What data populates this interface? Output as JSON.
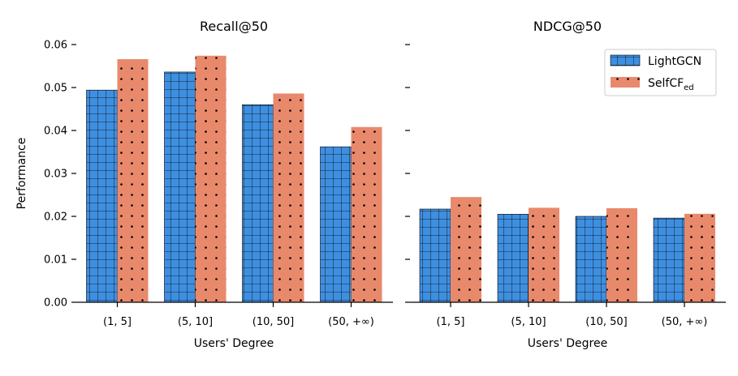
{
  "chart_data": [
    {
      "type": "bar",
      "title": "Recall@50",
      "xlabel": "Users' Degree",
      "ylabel": "Performance",
      "ylim": [
        0,
        0.06
      ],
      "yticks": [
        "0.00",
        "0.01",
        "0.02",
        "0.03",
        "0.04",
        "0.05",
        "0.06"
      ],
      "show_ytick_labels": true,
      "categories": [
        "(1, 5]",
        "(5, 10]",
        "(10, 50]",
        "(50, +∞)"
      ],
      "series": [
        {
          "name": "LightGCN",
          "values": [
            0.0494,
            0.0536,
            0.046,
            0.0362
          ]
        },
        {
          "name": "SelfCF_ed",
          "values": [
            0.0566,
            0.0574,
            0.0486,
            0.0408
          ]
        }
      ]
    },
    {
      "type": "bar",
      "title": "NDCG@50",
      "xlabel": "Users' Degree",
      "ylabel": "",
      "ylim": [
        0,
        0.06
      ],
      "yticks": [
        "0.00",
        "0.01",
        "0.02",
        "0.03",
        "0.04",
        "0.05",
        "0.06"
      ],
      "show_ytick_labels": false,
      "categories": [
        "(1, 5]",
        "(5, 10]",
        "(10, 50]",
        "(50, +∞)"
      ],
      "series": [
        {
          "name": "LightGCN",
          "values": [
            0.0217,
            0.0205,
            0.02,
            0.0196
          ]
        },
        {
          "name": "SelfCF_ed",
          "values": [
            0.0245,
            0.022,
            0.0219,
            0.0206
          ]
        }
      ]
    }
  ],
  "legend": {
    "position": "top-right of right panel",
    "items": [
      {
        "label": "LightGCN",
        "sub": ""
      },
      {
        "label": "SelfCF",
        "sub": "ed"
      }
    ]
  },
  "colors": {
    "lightgcn": "#3f8fe0",
    "selfcf": "#e9896b",
    "edge": "#000000"
  }
}
